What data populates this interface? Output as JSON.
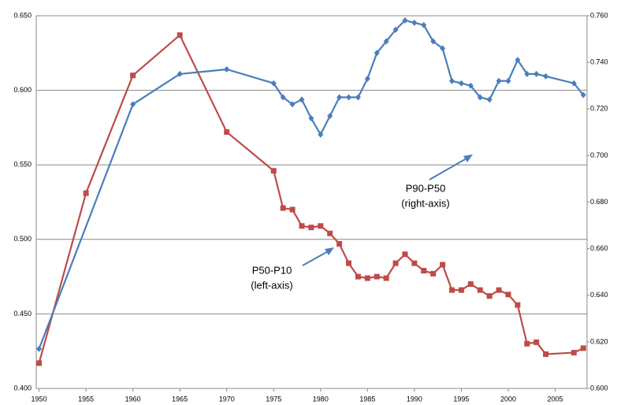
{
  "chart_data": {
    "type": "line",
    "series": [
      {
        "color": "#be4b48",
        "marker": "square",
        "axis": "y",
        "x": [
          1950,
          1955,
          1960,
          1965,
          1970,
          1975,
          1976,
          1977,
          1978,
          1979,
          1980,
          1981,
          1982,
          1983,
          1984,
          1985,
          1986,
          1987,
          1988,
          1989,
          1990,
          1991,
          1992,
          1993,
          1994,
          1995,
          1996,
          1997,
          1998,
          1999,
          2000,
          2001,
          2002,
          2003,
          2004,
          2007,
          2008
        ],
        "values": [
          0.417,
          0.531,
          0.61,
          0.637,
          0.572,
          0.546,
          0.521,
          0.52,
          0.509,
          0.508,
          0.509,
          0.504,
          0.497,
          0.484,
          0.475,
          0.474,
          0.475,
          0.474,
          0.484,
          0.49,
          0.484,
          0.479,
          0.477,
          0.483,
          0.466,
          0.466,
          0.47,
          0.466,
          0.462,
          0.466,
          0.463,
          0.456,
          0.43,
          0.431,
          0.423,
          0.424,
          0.427
        ]
      },
      {
        "color": "#4a7ebb",
        "marker": "diamond",
        "axis": "y2",
        "x": [
          1950,
          1960,
          1965,
          1970,
          1975,
          1976,
          1977,
          1978,
          1979,
          1980,
          1981,
          1982,
          1983,
          1984,
          1985,
          1986,
          1987,
          1988,
          1989,
          1990,
          1991,
          1992,
          1993,
          1994,
          1995,
          1996,
          1997,
          1998,
          1999,
          2000,
          2001,
          2002,
          2003,
          2004,
          2007,
          2008
        ],
        "values": [
          0.617,
          0.722,
          0.735,
          0.737,
          0.731,
          0.725,
          0.722,
          0.724,
          0.716,
          0.709,
          0.717,
          0.725,
          0.725,
          0.725,
          0.733,
          0.744,
          0.749,
          0.754,
          0.758,
          0.757,
          0.756,
          0.749,
          0.746,
          0.732,
          0.731,
          0.73,
          0.725,
          0.724,
          0.732,
          0.732,
          0.741,
          0.735,
          0.735,
          0.734,
          0.731,
          0.726
        ]
      }
    ],
    "xlim": [
      1949.7,
      2008.4
    ],
    "xticks": [
      1950,
      1955,
      1960,
      1965,
      1970,
      1975,
      1980,
      1985,
      1990,
      1995,
      2000,
      2005
    ],
    "ylim": [
      0.4,
      0.65
    ],
    "yticks": [
      {
        "value": 0.4,
        "label": "0.400"
      },
      {
        "value": 0.45,
        "label": "0.450"
      },
      {
        "value": 0.5,
        "label": "0.500"
      },
      {
        "value": 0.55,
        "label": "0.550"
      },
      {
        "value": 0.6,
        "label": "0.600"
      },
      {
        "value": 0.65,
        "label": "0.650"
      }
    ],
    "y2lim": [
      0.6,
      0.76
    ],
    "y2ticks": [
      {
        "value": 0.6,
        "label": "0.600"
      },
      {
        "value": 0.62,
        "label": "0.620"
      },
      {
        "value": 0.64,
        "label": "0.640"
      },
      {
        "value": 0.66,
        "label": "0.660"
      },
      {
        "value": 0.68,
        "label": "0.680"
      },
      {
        "value": 0.7,
        "label": "0.700"
      },
      {
        "value": 0.72,
        "label": "0.720"
      },
      {
        "value": 0.74,
        "label": "0.740"
      },
      {
        "value": 0.76,
        "label": "0.760"
      }
    ],
    "grid": true,
    "annotations": [
      {
        "lines": [
          "P90-P50",
          "(right-axis)"
        ]
      },
      {
        "lines": [
          "P50-P10",
          "(left-axis)"
        ]
      }
    ]
  }
}
